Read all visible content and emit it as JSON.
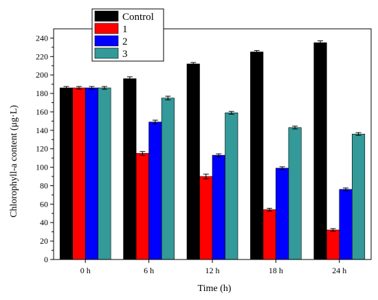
{
  "chart_data": {
    "type": "bar",
    "title": "",
    "xlabel": "Time (h)",
    "ylabel": "Chlorophyll-a content (μg·L)",
    "categories": [
      "0 h",
      "6 h",
      "12 h",
      "18 h",
      "24 h"
    ],
    "ylim": [
      0,
      250
    ],
    "yticks": [
      0,
      20,
      40,
      60,
      80,
      100,
      120,
      140,
      160,
      180,
      200,
      220,
      240
    ],
    "grid": false,
    "legend_position": "top-left",
    "series": [
      {
        "name": "Control",
        "color": "#000000",
        "values": [
          186,
          196,
          212,
          225,
          235
        ],
        "errors": [
          1.5,
          2,
          1.5,
          1.5,
          2
        ]
      },
      {
        "name": "1",
        "color": "#ff0000",
        "values": [
          186,
          115,
          90,
          54,
          32
        ],
        "errors": [
          1.5,
          2,
          2.5,
          1.5,
          1.5
        ]
      },
      {
        "name": "2",
        "color": "#0000ff",
        "values": [
          186,
          149,
          113,
          99,
          76
        ],
        "errors": [
          1.5,
          2,
          1.5,
          1.5,
          1.5
        ]
      },
      {
        "name": "3",
        "color": "#339999",
        "values": [
          186,
          175,
          159,
          143,
          136
        ],
        "errors": [
          1.5,
          2,
          1.5,
          1.5,
          1.5
        ]
      }
    ]
  }
}
